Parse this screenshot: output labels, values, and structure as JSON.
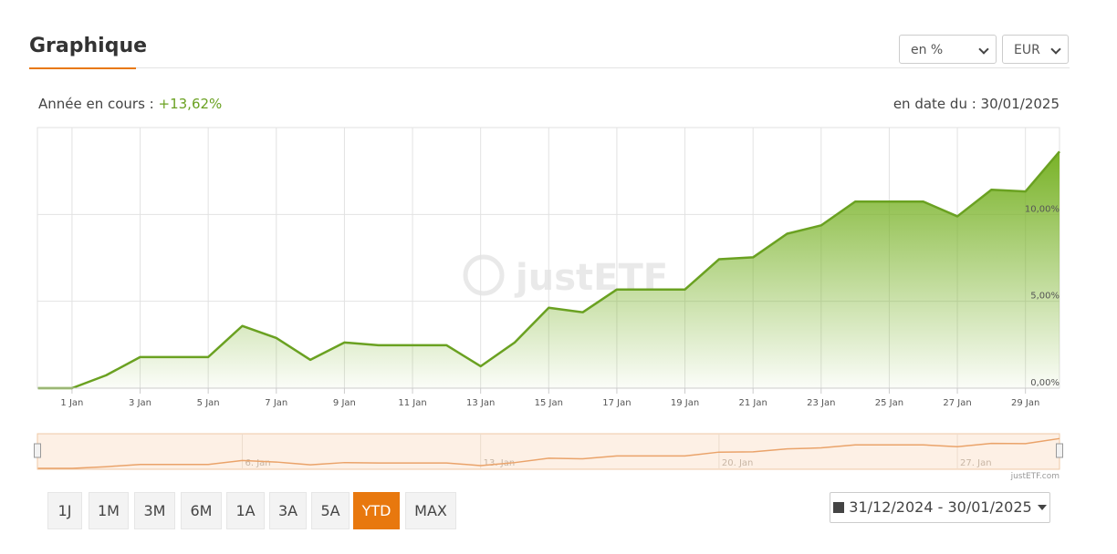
{
  "header": {
    "title": "Graphique",
    "unit_select": "en %",
    "currency_select": "EUR"
  },
  "summary": {
    "label": "Année en cours :",
    "value": "+13,62%",
    "date_label": "en date du : 30/01/2025"
  },
  "chart_data": {
    "type": "area",
    "x": [
      0,
      1,
      2,
      3,
      4,
      5,
      6,
      7,
      8,
      9,
      10,
      11,
      12,
      13,
      14,
      15,
      16,
      17,
      18,
      19,
      20,
      21,
      22,
      23,
      24,
      25,
      26,
      27,
      28,
      29,
      30
    ],
    "values": [
      0,
      0,
      0.74,
      1.79,
      1.79,
      1.79,
      3.58,
      2.89,
      1.63,
      2.63,
      2.47,
      2.47,
      2.47,
      1.26,
      2.63,
      4.63,
      4.37,
      5.68,
      5.68,
      5.68,
      7.42,
      7.53,
      8.89,
      9.37,
      10.74,
      10.74,
      10.74,
      9.89,
      11.42,
      11.32,
      13.62
    ],
    "xlim": [
      0,
      30
    ],
    "xticks": [
      {
        "value": 1,
        "label": "1 Jan"
      },
      {
        "value": 3,
        "label": "3 Jan"
      },
      {
        "value": 5,
        "label": "5 Jan"
      },
      {
        "value": 7,
        "label": "7 Jan"
      },
      {
        "value": 9,
        "label": "9 Jan"
      },
      {
        "value": 11,
        "label": "11 Jan"
      },
      {
        "value": 13,
        "label": "13 Jan"
      },
      {
        "value": 15,
        "label": "15 Jan"
      },
      {
        "value": 17,
        "label": "17 Jan"
      },
      {
        "value": 19,
        "label": "19 Jan"
      },
      {
        "value": 21,
        "label": "21 Jan"
      },
      {
        "value": 23,
        "label": "23 Jan"
      },
      {
        "value": 25,
        "label": "25 Jan"
      },
      {
        "value": 27,
        "label": "27 Jan"
      },
      {
        "value": 29,
        "label": "29 Jan"
      }
    ],
    "ylim": [
      0,
      15
    ],
    "yticks": [
      {
        "value": 0,
        "label": "0,00%"
      },
      {
        "value": 5,
        "label": "5,00%"
      },
      {
        "value": 10,
        "label": "10,00%"
      }
    ],
    "color": "#6aa121",
    "grid": true,
    "watermark": "justETF",
    "credit": "justETF.com",
    "navigator": {
      "color": "#eaa36a",
      "xticks": [
        {
          "value": 6,
          "label": "6. Jan"
        },
        {
          "value": 13,
          "label": "13. Jan"
        },
        {
          "value": 20,
          "label": "20. Jan"
        },
        {
          "value": 27,
          "label": "27. Jan"
        }
      ]
    }
  },
  "range_buttons": {
    "items": [
      "1J",
      "1M",
      "3M",
      "6M",
      "1A",
      "3A",
      "5A",
      "YTD",
      "MAX"
    ],
    "active": 7
  },
  "date_range": "31/12/2024 - 30/01/2025"
}
